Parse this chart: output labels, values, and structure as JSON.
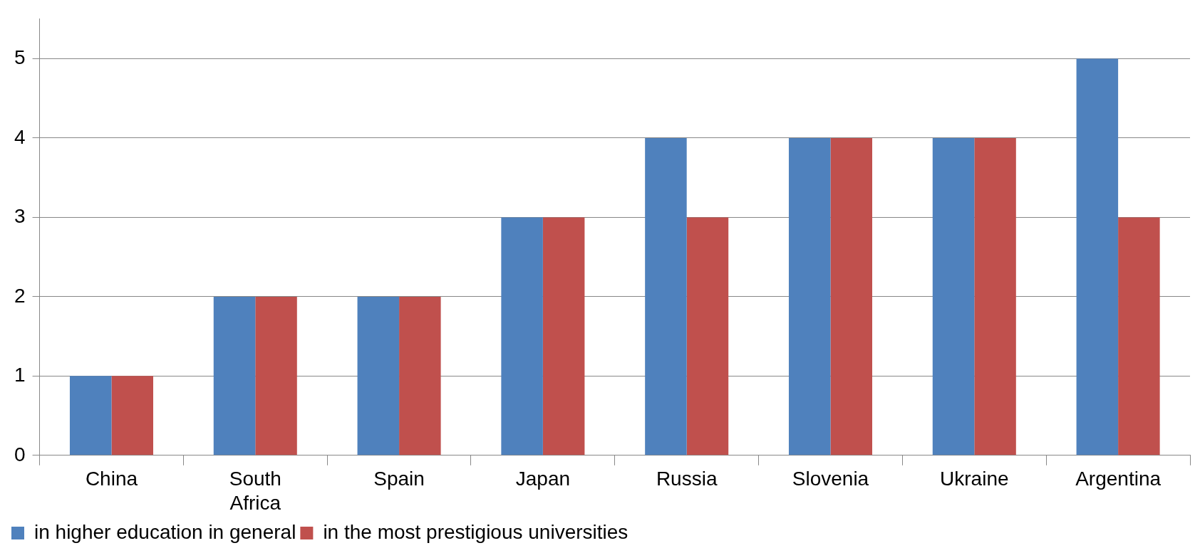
{
  "chart_data": {
    "type": "bar",
    "categories": [
      "China",
      "South Africa",
      "Spain",
      "Japan",
      "Russia",
      "Slovenia",
      "Ukraine",
      "Argentina"
    ],
    "series": [
      {
        "name": "in higher education in general",
        "color": "#4f81bd",
        "values": [
          1,
          2,
          2,
          3,
          4,
          4,
          4,
          5
        ]
      },
      {
        "name": "in the most prestigious universities",
        "color": "#c0504d",
        "values": [
          1,
          2,
          2,
          3,
          3,
          4,
          4,
          3
        ]
      }
    ],
    "ylim": [
      0,
      5.5
    ],
    "yticks": [
      0,
      1,
      2,
      3,
      4,
      5
    ],
    "grid": "y",
    "legend": "bottom left"
  }
}
